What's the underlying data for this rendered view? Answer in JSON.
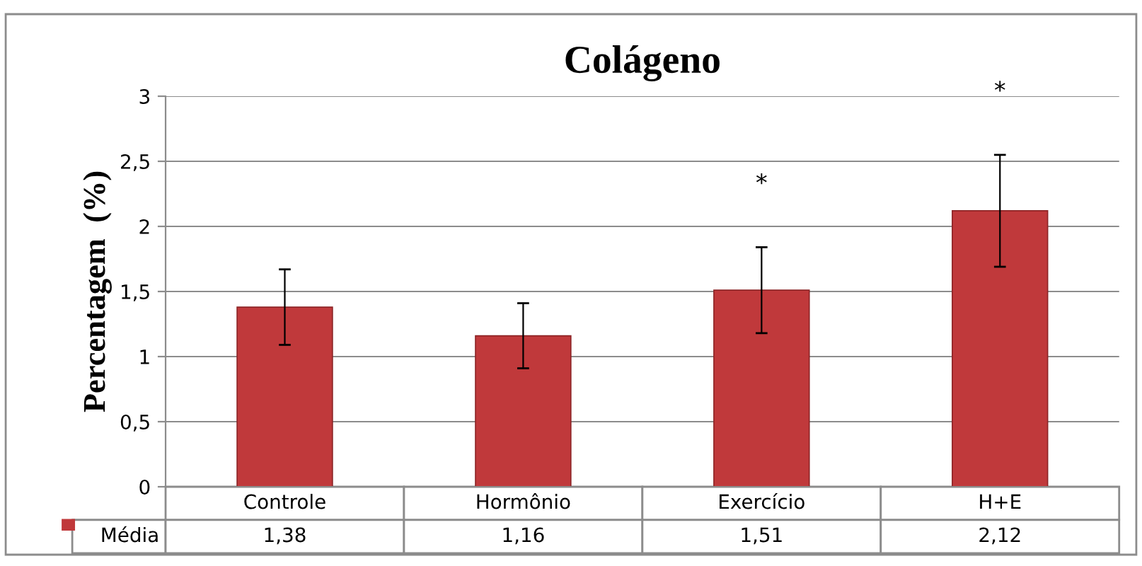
{
  "chart_data": {
    "type": "bar",
    "title": "Colágeno",
    "ylabel": "Percentagem  (%)",
    "categories": [
      "Controle",
      "Hormônio",
      "Exercício",
      "H+E"
    ],
    "series": [
      {
        "name": "Média",
        "color": "#c0393b",
        "values": [
          1.38,
          1.16,
          1.51,
          2.12
        ],
        "errors": [
          0.29,
          0.25,
          0.33,
          0.43
        ],
        "value_labels": [
          "1,38",
          "1,16",
          "1,51",
          "2,12"
        ]
      }
    ],
    "ylim": [
      0,
      3
    ],
    "yticks": [
      0,
      {
        "value": 0.5,
        "label": "0,5"
      },
      1,
      {
        "value": 1.5,
        "label": "1,5"
      },
      2,
      {
        "value": 2.5,
        "label": "2,5"
      },
      3
    ],
    "grid": "y",
    "annotations": [
      "*",
      "*"
    ]
  }
}
